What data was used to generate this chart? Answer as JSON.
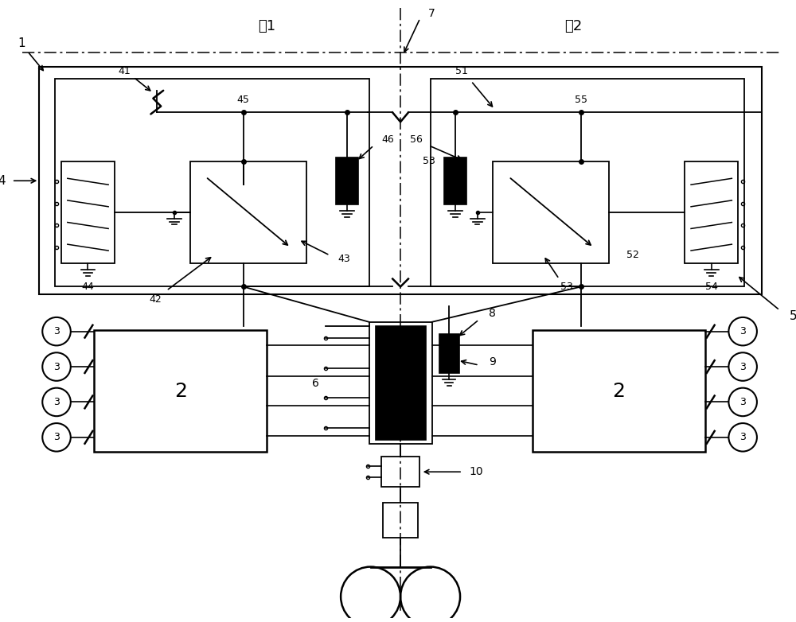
{
  "bg_color": "#ffffff",
  "fig_width": 10.0,
  "fig_height": 7.82,
  "dpi": 100,
  "labels": {
    "che1": "车1",
    "che2": "车2"
  }
}
